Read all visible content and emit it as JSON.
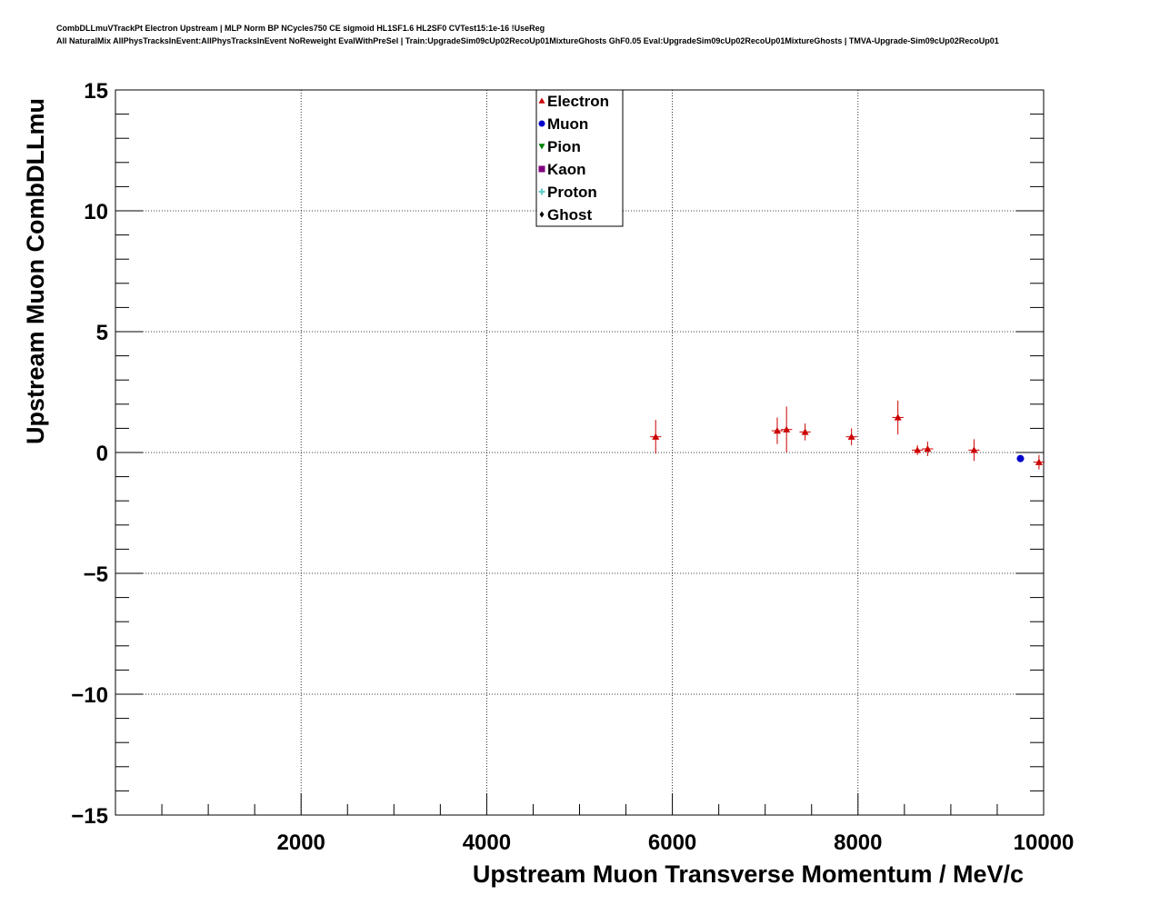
{
  "title": {
    "line1": "CombDLLmuVTrackPt Electron Upstream | MLP Norm BP NCycles750 CE sigmoid HL1SF1.6 HL2SF0 CVTest15:1e-16 !UseReg",
    "line2": "All NaturalMix AllPhysTracksInEvent:AllPhysTracksInEvent NoReweight EvalWithPreSel | Train:UpgradeSim09cUp02RecoUp01MixtureGhosts GhF0.05 Eval:UpgradeSim09cUp02RecoUp01MixtureGhosts | TMVA-Upgrade-Sim09cUp02RecoUp01"
  },
  "chart_data": {
    "type": "scatter",
    "xlabel": "Upstream Muon Transverse Momentum / MeV/c",
    "ylabel": "Upstream Muon CombDLLmu",
    "xlim": [
      0,
      10000
    ],
    "ylim": [
      -15,
      15
    ],
    "x_ticks": [
      2000,
      4000,
      6000,
      8000,
      10000
    ],
    "x_tick_labels": [
      "2000",
      "4000",
      "6000",
      "8000",
      "10000"
    ],
    "y_ticks": [
      -15,
      -10,
      -5,
      0,
      5,
      10,
      15
    ],
    "y_tick_labels": [
      "−15",
      "−10",
      "−5",
      "0",
      "5",
      "10",
      "15"
    ],
    "grid": true,
    "legend_position": "top-center",
    "series": [
      {
        "name": "Electron",
        "color": "#cc0000",
        "marker": "triangle-up",
        "x": [
          5820,
          7130,
          7230,
          7430,
          7930,
          8430,
          8640,
          8750,
          9250,
          9950
        ],
        "y": [
          0.65,
          0.9,
          0.95,
          0.85,
          0.65,
          1.45,
          0.1,
          0.15,
          0.1,
          -0.4
        ],
        "yerr": [
          0.7,
          0.55,
          0.95,
          0.35,
          0.35,
          0.7,
          0.2,
          0.3,
          0.45,
          0.3
        ],
        "xerr": [
          60,
          60,
          60,
          60,
          60,
          60,
          60,
          60,
          60,
          60
        ]
      },
      {
        "name": "Muon",
        "color": "#0000cc",
        "marker": "circle",
        "x": [
          9750
        ],
        "y": [
          -0.25
        ],
        "yerr": [
          0.1
        ],
        "xerr": [
          40
        ]
      },
      {
        "name": "Pion",
        "color": "#008000",
        "marker": "triangle-down",
        "x": [],
        "y": []
      },
      {
        "name": "Kaon",
        "color": "#800080",
        "marker": "square",
        "x": [],
        "y": []
      },
      {
        "name": "Proton",
        "color": "#66cccc",
        "marker": "cross",
        "x": [],
        "y": []
      },
      {
        "name": "Ghost",
        "color": "#000000",
        "marker": "diamond",
        "x": [],
        "y": []
      }
    ]
  }
}
